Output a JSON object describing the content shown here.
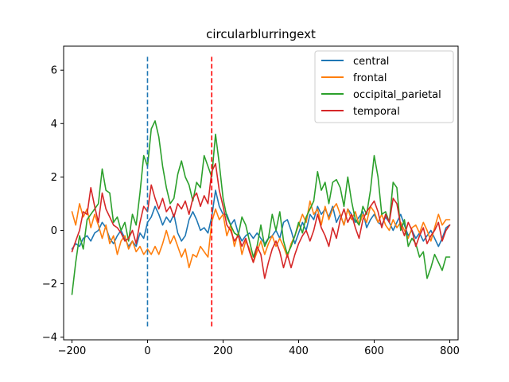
{
  "chart_data": {
    "type": "line",
    "title": "circularblurringext",
    "xlabel": "",
    "ylabel": "",
    "xlim": [
      -222,
      822
    ],
    "ylim": [
      -4.1,
      6.9
    ],
    "xticks": [
      -200,
      0,
      200,
      400,
      600,
      800
    ],
    "yticks": [
      -4,
      -2,
      0,
      2,
      4,
      6
    ],
    "xtick_labels": [
      "−200",
      "0",
      "200",
      "400",
      "600",
      "800"
    ],
    "ytick_labels": [
      "−4",
      "−2",
      "0",
      "2",
      "4",
      "6"
    ],
    "grid": false,
    "legend_position": "top-right",
    "vlines": [
      {
        "x": 0,
        "ymin": -3.6,
        "ymax": 6.5,
        "color": "#1f77b4",
        "style": "dashed"
      },
      {
        "x": 170,
        "ymin": -3.6,
        "ymax": 6.5,
        "color": "#ff0000",
        "style": "dashed"
      }
    ],
    "series": [
      {
        "name": "central",
        "color": "#1f77b4",
        "x": [
          -200,
          -190,
          -180,
          -170,
          -160,
          -150,
          -140,
          -130,
          -120,
          -110,
          -100,
          -90,
          -80,
          -70,
          -60,
          -50,
          -40,
          -30,
          -20,
          -10,
          0,
          10,
          20,
          30,
          40,
          50,
          60,
          70,
          80,
          90,
          100,
          110,
          120,
          130,
          140,
          150,
          160,
          170,
          180,
          190,
          200,
          210,
          220,
          230,
          240,
          250,
          260,
          270,
          280,
          290,
          300,
          310,
          320,
          330,
          340,
          350,
          360,
          370,
          380,
          390,
          400,
          410,
          420,
          430,
          440,
          450,
          460,
          470,
          480,
          490,
          500,
          510,
          520,
          530,
          540,
          550,
          560,
          570,
          580,
          590,
          600,
          610,
          620,
          630,
          640,
          650,
          660,
          670,
          680,
          690,
          700,
          710,
          720,
          730,
          740,
          750,
          760,
          770,
          780,
          790,
          800
        ],
        "y": [
          -0.7,
          -0.5,
          -0.6,
          -0.3,
          -0.2,
          -0.4,
          -0.1,
          0.0,
          0.3,
          0.1,
          -0.3,
          -0.5,
          -0.2,
          0.0,
          -0.3,
          -0.6,
          -0.4,
          -0.6,
          -0.1,
          -0.3,
          0.3,
          0.5,
          0.9,
          0.6,
          0.2,
          0.5,
          0.3,
          0.6,
          -0.1,
          -0.4,
          -0.2,
          0.4,
          0.7,
          0.4,
          0.0,
          0.1,
          -0.1,
          0.5,
          1.5,
          0.9,
          0.6,
          0.6,
          0.2,
          0.4,
          -0.1,
          -0.4,
          -0.2,
          -0.1,
          -0.3,
          -0.1,
          -0.3,
          -0.5,
          -0.3,
          -0.2,
          0.0,
          -0.3,
          0.3,
          0.4,
          0.0,
          -0.5,
          -0.1,
          0.3,
          0.0,
          0.6,
          0.4,
          0.9,
          0.6,
          0.8,
          0.5,
          0.9,
          0.3,
          0.6,
          0.2,
          0.8,
          0.6,
          0.3,
          0.5,
          0.7,
          0.1,
          0.4,
          0.6,
          0.3,
          0.2,
          0.5,
          0.3,
          0.0,
          0.3,
          0.6,
          0.2,
          -0.2,
          0.0,
          -0.3,
          -0.1,
          -0.4,
          -0.2,
          0.0,
          -0.3,
          -0.6,
          -0.3,
          0.1,
          0.2
        ]
      },
      {
        "name": "frontal",
        "color": "#ff7f0e",
        "x": [
          -200,
          -190,
          -180,
          -170,
          -160,
          -150,
          -140,
          -130,
          -120,
          -110,
          -100,
          -90,
          -80,
          -70,
          -60,
          -50,
          -40,
          -30,
          -20,
          -10,
          0,
          10,
          20,
          30,
          40,
          50,
          60,
          70,
          80,
          90,
          100,
          110,
          120,
          130,
          140,
          150,
          160,
          170,
          180,
          190,
          200,
          210,
          220,
          230,
          240,
          250,
          260,
          270,
          280,
          290,
          300,
          310,
          320,
          330,
          340,
          350,
          360,
          370,
          380,
          390,
          400,
          410,
          420,
          430,
          440,
          450,
          460,
          470,
          480,
          490,
          500,
          510,
          520,
          530,
          540,
          550,
          560,
          570,
          580,
          590,
          600,
          610,
          620,
          630,
          640,
          650,
          660,
          670,
          680,
          690,
          700,
          710,
          720,
          730,
          740,
          750,
          760,
          770,
          780,
          790,
          800
        ],
        "y": [
          0.7,
          0.2,
          1.0,
          0.5,
          0.8,
          0.1,
          0.6,
          0.2,
          -0.3,
          0.2,
          -0.5,
          -0.2,
          -0.9,
          -0.4,
          -0.2,
          -0.7,
          -0.4,
          -0.8,
          -0.6,
          -0.9,
          -0.7,
          -0.9,
          -0.6,
          -0.9,
          -0.5,
          0.0,
          -0.5,
          -0.2,
          -0.6,
          -1.0,
          -0.7,
          -1.4,
          -0.9,
          -1.0,
          -0.6,
          -0.8,
          -1.0,
          0.3,
          0.8,
          0.4,
          0.6,
          -0.2,
          0.2,
          -0.6,
          -0.1,
          -0.9,
          -0.4,
          -0.7,
          -1.2,
          -0.8,
          -0.4,
          -0.9,
          -0.5,
          -0.2,
          -0.6,
          -0.3,
          -0.6,
          -1.0,
          -0.5,
          -0.2,
          0.2,
          0.6,
          0.3,
          1.1,
          0.6,
          0.8,
          0.2,
          0.9,
          0.4,
          0.8,
          1.0,
          0.6,
          0.2,
          0.8,
          0.4,
          0.7,
          0.2,
          0.6,
          0.3,
          0.9,
          0.7,
          0.3,
          0.6,
          0.2,
          0.0,
          0.4,
          0.1,
          0.3,
          0.0,
          -0.3,
          0.1,
          0.2,
          -0.1,
          0.3,
          0.0,
          -0.4,
          0.1,
          0.6,
          0.2,
          0.4,
          0.4
        ]
      },
      {
        "name": "occipital_parietal",
        "color": "#2ca02c",
        "x": [
          -200,
          -190,
          -180,
          -170,
          -160,
          -150,
          -140,
          -130,
          -120,
          -110,
          -100,
          -90,
          -80,
          -70,
          -60,
          -50,
          -40,
          -30,
          -20,
          -10,
          0,
          10,
          20,
          30,
          40,
          50,
          60,
          70,
          80,
          90,
          100,
          110,
          120,
          130,
          140,
          150,
          160,
          170,
          180,
          190,
          200,
          210,
          220,
          230,
          240,
          250,
          260,
          270,
          280,
          290,
          300,
          310,
          320,
          330,
          340,
          350,
          360,
          370,
          380,
          390,
          400,
          410,
          420,
          430,
          440,
          450,
          460,
          470,
          480,
          490,
          500,
          510,
          520,
          530,
          540,
          550,
          560,
          570,
          580,
          590,
          600,
          610,
          620,
          630,
          640,
          650,
          660,
          670,
          680,
          690,
          700,
          710,
          720,
          730,
          740,
          750,
          760,
          770,
          780,
          790,
          800
        ],
        "y": [
          -2.4,
          -1.2,
          -0.2,
          -0.7,
          0.4,
          0.6,
          0.8,
          1.0,
          2.3,
          1.5,
          1.4,
          0.3,
          0.5,
          0.0,
          0.3,
          -0.4,
          0.6,
          0.2,
          1.4,
          2.8,
          2.4,
          3.8,
          4.1,
          3.5,
          2.4,
          1.6,
          1.0,
          1.2,
          2.1,
          2.6,
          2.0,
          1.7,
          1.1,
          1.8,
          1.6,
          2.8,
          2.4,
          2.0,
          3.6,
          2.5,
          1.2,
          0.5,
          0.2,
          -0.1,
          -0.2,
          0.5,
          0.2,
          -0.4,
          -1.0,
          -0.6,
          0.2,
          -0.6,
          -0.3,
          0.6,
          0.0,
          0.7,
          -0.4,
          -0.9,
          -0.6,
          -0.2,
          0.3,
          -0.1,
          0.5,
          0.8,
          1.1,
          2.2,
          1.5,
          1.8,
          1.0,
          1.8,
          1.9,
          1.6,
          0.9,
          2.0,
          1.1,
          0.4,
          0.2,
          0.9,
          0.6,
          1.5,
          2.8,
          2.0,
          0.6,
          0.7,
          0.3,
          1.8,
          1.6,
          0.0,
          0.4,
          -0.6,
          -0.3,
          -0.5,
          -1.0,
          -0.8,
          -1.8,
          -1.4,
          -0.9,
          -1.2,
          -1.5,
          -1.0,
          -1.0
        ]
      },
      {
        "name": "temporal",
        "color": "#d62728",
        "x": [
          -200,
          -190,
          -180,
          -170,
          -160,
          -150,
          -140,
          -130,
          -120,
          -110,
          -100,
          -90,
          -80,
          -70,
          -60,
          -50,
          -40,
          -30,
          -20,
          -10,
          0,
          10,
          20,
          30,
          40,
          50,
          60,
          70,
          80,
          90,
          100,
          110,
          120,
          130,
          140,
          150,
          160,
          170,
          180,
          190,
          200,
          210,
          220,
          230,
          240,
          250,
          260,
          270,
          280,
          290,
          300,
          310,
          320,
          330,
          340,
          350,
          360,
          370,
          380,
          390,
          400,
          410,
          420,
          430,
          440,
          450,
          460,
          470,
          480,
          490,
          500,
          510,
          520,
          530,
          540,
          550,
          560,
          570,
          580,
          590,
          600,
          610,
          620,
          630,
          640,
          650,
          660,
          670,
          680,
          690,
          700,
          710,
          720,
          730,
          740,
          750,
          760,
          770,
          780,
          790,
          800
        ],
        "y": [
          -0.8,
          -0.4,
          0.0,
          0.7,
          0.6,
          1.6,
          0.9,
          0.3,
          1.4,
          0.8,
          0.5,
          0.2,
          0.1,
          -0.1,
          -0.4,
          -0.3,
          0.0,
          -0.5,
          0.3,
          0.9,
          0.7,
          1.7,
          1.2,
          0.8,
          1.2,
          0.7,
          0.9,
          0.5,
          1.0,
          0.8,
          1.1,
          0.6,
          1.2,
          1.4,
          0.9,
          1.3,
          1.0,
          2.2,
          2.5,
          1.5,
          0.9,
          0.2,
          0.0,
          -0.4,
          -0.2,
          -0.6,
          -0.3,
          -0.8,
          -1.2,
          -0.6,
          -0.9,
          -1.8,
          -1.2,
          -0.7,
          -0.4,
          -0.8,
          -1.4,
          -0.9,
          -1.4,
          -0.9,
          -0.5,
          -0.2,
          0.0,
          -0.4,
          0.0,
          0.6,
          0.1,
          -0.2,
          -0.6,
          0.1,
          -0.3,
          0.4,
          0.8,
          0.3,
          0.6,
          0.1,
          -0.3,
          0.4,
          0.7,
          0.9,
          1.1,
          0.7,
          0.1,
          0.6,
          0.3,
          1.2,
          1.0,
          0.2,
          -0.2,
          0.3,
          0.0,
          -0.6,
          -0.2,
          0.1,
          -0.5,
          -0.2,
          0.0,
          0.3,
          -0.4,
          0.0,
          0.2
        ]
      }
    ]
  }
}
